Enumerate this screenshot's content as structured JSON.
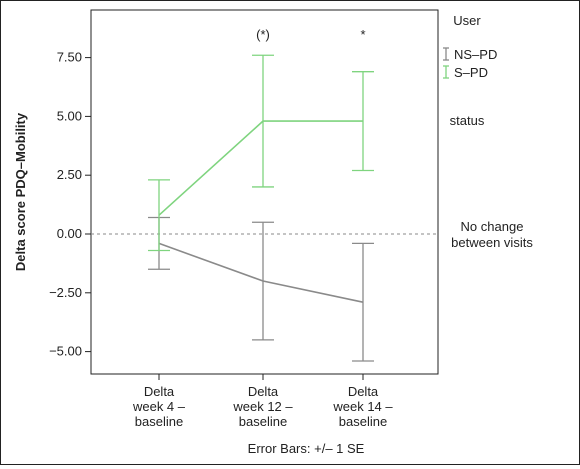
{
  "chart_data": {
    "type": "line",
    "ylabel": "Delta score PDQ–Mobility",
    "xlabel": "Error Bars: +/– 1 SE",
    "ylim": [
      -6.0,
      9.5
    ],
    "yticks": [
      7.5,
      5.0,
      2.5,
      0.0,
      -2.5,
      -5.0
    ],
    "ytick_labels": [
      "7.50",
      "5.00",
      "2.50",
      "0.00",
      "−2.50",
      "−5.00"
    ],
    "categories": [
      [
        "Delta",
        "week 4 –",
        "baseline"
      ],
      [
        "Delta",
        "week 12 –",
        "baseline"
      ],
      [
        "Delta",
        "week 14 –",
        "baseline"
      ]
    ],
    "series": [
      {
        "name": "NS–PD",
        "color": "#8a8a8a",
        "values": [
          -0.4,
          -2.0,
          -2.9
        ],
        "error_low": [
          -1.5,
          -4.5,
          -5.4
        ],
        "error_high": [
          0.7,
          0.5,
          -0.4
        ]
      },
      {
        "name": "S–PD",
        "color": "#7fd47f",
        "values": [
          0.8,
          4.8,
          4.8
        ],
        "error_low": [
          -0.7,
          2.0,
          2.7
        ],
        "error_high": [
          2.3,
          7.6,
          6.9
        ]
      }
    ],
    "significance_marks": [
      "",
      "(*)",
      "*"
    ],
    "legend": {
      "title_line1": "User",
      "title_line2": "status",
      "position": "right"
    },
    "reference_line": {
      "value": 0.0,
      "label_line1": "No change",
      "label_line2": "between visits"
    },
    "grid": false
  }
}
